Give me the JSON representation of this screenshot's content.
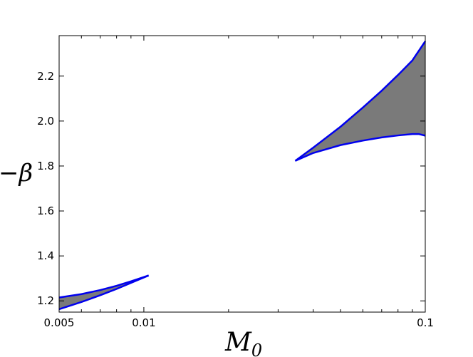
{
  "chart_data": {
    "type": "area",
    "xlabel": "M",
    "xlabel_sub": "0",
    "ylabel": "−β",
    "xscale": "log",
    "xlim": [
      0.005,
      0.1
    ],
    "ylim": [
      1.15,
      2.38
    ],
    "grid": false,
    "x_ticks": [
      {
        "value": 0.005,
        "label": "0.005"
      },
      {
        "value": 0.01,
        "label": "0.01"
      },
      {
        "value": 0.1,
        "label": "0.1"
      }
    ],
    "y_ticks": [
      {
        "value": 1.2,
        "label": "1.2"
      },
      {
        "value": 1.4,
        "label": "1.4"
      },
      {
        "value": 1.6,
        "label": "1.6"
      },
      {
        "value": 1.8,
        "label": "1.8"
      },
      {
        "value": 2.0,
        "label": "2.0"
      },
      {
        "value": 2.2,
        "label": "2.2"
      }
    ],
    "fill_color": "#7a7a7a",
    "edge_color": "#0000ee",
    "regions": [
      {
        "upper": {
          "x": [
            0.005,
            0.006,
            0.007,
            0.008,
            0.009,
            0.0104
          ],
          "y": [
            1.215,
            1.23,
            1.248,
            1.267,
            1.287,
            1.313
          ]
        },
        "lower": {
          "x": [
            0.005,
            0.006,
            0.007,
            0.008,
            0.009,
            0.0104
          ],
          "y": [
            1.163,
            1.195,
            1.225,
            1.253,
            1.28,
            1.313
          ]
        }
      },
      {
        "upper": {
          "x": [
            0.0345,
            0.04,
            0.05,
            0.06,
            0.07,
            0.08,
            0.09,
            0.1
          ],
          "y": [
            1.823,
            1.882,
            1.975,
            2.06,
            2.135,
            2.205,
            2.27,
            2.355
          ]
        },
        "lower": {
          "x": [
            0.0345,
            0.04,
            0.05,
            0.06,
            0.07,
            0.08,
            0.09,
            0.095,
            0.1
          ],
          "y": [
            1.823,
            1.858,
            1.893,
            1.913,
            1.927,
            1.936,
            1.942,
            1.942,
            1.935
          ]
        }
      }
    ]
  }
}
